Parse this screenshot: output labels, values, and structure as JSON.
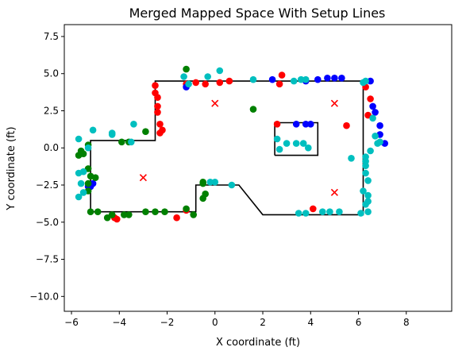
{
  "chart_data": {
    "type": "scatter",
    "title": "Merged Mapped Space With Setup Lines",
    "xlabel": "X coordinate (ft)",
    "ylabel": "Y coordinate (ft)",
    "xlim": [
      -6.3,
      9.9
    ],
    "ylim": [
      -11.0,
      8.3
    ],
    "xticks": [
      -6,
      -4,
      -2,
      0,
      2,
      4,
      6,
      8
    ],
    "xtick_labels": [
      "−6",
      "−4",
      "−2",
      "0",
      "2",
      "4",
      "6",
      "8"
    ],
    "yticks": [
      7.5,
      5.0,
      2.5,
      0.0,
      -2.5,
      -5.0,
      -7.5,
      -10.0
    ],
    "ytick_labels": [
      "7.5",
      "5.0",
      "2.5",
      "0.0",
      "−2.5",
      "−5.0",
      "−7.5",
      "−10.0"
    ],
    "grid": false,
    "colors": {
      "red": "#ff0000",
      "blue": "#0000ff",
      "green": "#008000",
      "cyan": "#00bfbf",
      "line": "#000000"
    },
    "setup_lines": [
      {
        "name": "outline",
        "points": [
          [
            -5.2,
            -4.3
          ],
          [
            -5.2,
            0.5
          ],
          [
            -2.5,
            0.5
          ],
          [
            -2.5,
            4.5
          ],
          [
            6.2,
            4.5
          ],
          [
            6.2,
            -4.5
          ],
          [
            2.0,
            -4.5
          ],
          [
            1.0,
            -2.5
          ],
          [
            -0.8,
            -2.5
          ],
          [
            -0.8,
            -4.3
          ],
          [
            -5.2,
            -4.3
          ]
        ]
      },
      {
        "name": "inner-box",
        "points": [
          [
            2.5,
            -0.5
          ],
          [
            2.5,
            1.7
          ],
          [
            4.3,
            1.7
          ],
          [
            4.3,
            -0.5
          ],
          [
            2.5,
            -0.5
          ]
        ]
      }
    ],
    "markers": [
      [
        0.0,
        3.0
      ],
      [
        5.0,
        3.0
      ],
      [
        -3.0,
        -2.0
      ],
      [
        5.0,
        -3.0
      ]
    ],
    "series": [
      {
        "color": "red",
        "points": [
          [
            -2.5,
            4.2
          ],
          [
            -2.5,
            3.7
          ],
          [
            -2.4,
            3.4
          ],
          [
            -2.4,
            2.8
          ],
          [
            -2.4,
            2.4
          ],
          [
            -2.3,
            1.6
          ],
          [
            -2.3,
            1.0
          ],
          [
            -2.2,
            1.2
          ],
          [
            -1.2,
            4.3
          ],
          [
            -0.8,
            4.4
          ],
          [
            -0.4,
            4.3
          ],
          [
            0.2,
            4.4
          ],
          [
            0.6,
            4.5
          ],
          [
            2.8,
            4.9
          ],
          [
            2.7,
            4.3
          ],
          [
            2.6,
            1.6
          ],
          [
            4.1,
            -4.1
          ],
          [
            5.5,
            1.5
          ],
          [
            6.4,
            2.2
          ],
          [
            6.5,
            3.3
          ],
          [
            6.3,
            4.1
          ],
          [
            -4.1,
            -4.8
          ],
          [
            -4.2,
            -4.7
          ],
          [
            -1.6,
            -4.7
          ],
          [
            -1.2,
            -4.2
          ]
        ]
      },
      {
        "color": "blue",
        "points": [
          [
            -1.2,
            4.1
          ],
          [
            2.4,
            4.6
          ],
          [
            3.4,
            1.6
          ],
          [
            3.8,
            1.6
          ],
          [
            4.0,
            1.6
          ],
          [
            4.3,
            4.6
          ],
          [
            4.7,
            4.7
          ],
          [
            5.0,
            4.7
          ],
          [
            5.3,
            4.7
          ],
          [
            6.5,
            4.5
          ],
          [
            6.6,
            2.8
          ],
          [
            6.7,
            2.4
          ],
          [
            6.9,
            1.5
          ],
          [
            6.9,
            0.9
          ],
          [
            7.1,
            0.3
          ],
          [
            -5.1,
            -2.4
          ],
          [
            -5.3,
            -2.6
          ],
          [
            -5.2,
            -2.6
          ],
          [
            3.8,
            4.5
          ]
        ]
      },
      {
        "color": "green",
        "points": [
          [
            -5.3,
            0.2
          ],
          [
            -5.6,
            -0.2
          ],
          [
            -5.5,
            -0.4
          ],
          [
            -5.7,
            -0.5
          ],
          [
            -5.3,
            -1.4
          ],
          [
            -5.2,
            -1.9
          ],
          [
            -5.0,
            -2.0
          ],
          [
            -5.3,
            -2.4
          ],
          [
            -5.3,
            -2.9
          ],
          [
            -5.2,
            -4.3
          ],
          [
            -4.9,
            -4.3
          ],
          [
            -4.5,
            -4.7
          ],
          [
            -4.3,
            -4.5
          ],
          [
            -3.6,
            -4.5
          ],
          [
            -3.8,
            -4.5
          ],
          [
            -2.9,
            -4.3
          ],
          [
            -2.5,
            -4.3
          ],
          [
            -2.1,
            -4.3
          ],
          [
            -1.2,
            -4.1
          ],
          [
            -0.9,
            -4.5
          ],
          [
            -0.5,
            -2.4
          ],
          [
            -0.5,
            -2.3
          ],
          [
            -0.4,
            -3.1
          ],
          [
            -0.5,
            -3.4
          ],
          [
            1.6,
            2.6
          ],
          [
            -1.2,
            5.3
          ],
          [
            -2.9,
            1.1
          ],
          [
            -3.6,
            0.4
          ],
          [
            -3.9,
            0.4
          ]
        ]
      },
      {
        "color": "cyan",
        "points": [
          [
            -1.3,
            4.8
          ],
          [
            -1.1,
            4.3
          ],
          [
            -0.3,
            4.8
          ],
          [
            0.2,
            5.2
          ],
          [
            1.6,
            4.6
          ],
          [
            3.3,
            4.5
          ],
          [
            3.6,
            4.6
          ],
          [
            3.8,
            4.6
          ],
          [
            6.3,
            4.5
          ],
          [
            6.2,
            4.4
          ],
          [
            6.6,
            2.0
          ],
          [
            6.7,
            0.8
          ],
          [
            6.8,
            0.3
          ],
          [
            6.9,
            0.4
          ],
          [
            6.5,
            -0.2
          ],
          [
            6.3,
            -0.6
          ],
          [
            6.3,
            -0.9
          ],
          [
            5.7,
            -0.7
          ],
          [
            6.3,
            -1.2
          ],
          [
            6.3,
            -1.7
          ],
          [
            6.4,
            -2.2
          ],
          [
            6.2,
            -2.9
          ],
          [
            6.4,
            -3.2
          ],
          [
            6.4,
            -3.6
          ],
          [
            6.3,
            -3.8
          ],
          [
            6.4,
            -4.3
          ],
          [
            6.1,
            -4.4
          ],
          [
            5.2,
            -4.3
          ],
          [
            4.8,
            -4.3
          ],
          [
            4.5,
            -4.3
          ],
          [
            3.8,
            -4.4
          ],
          [
            3.5,
            -4.4
          ],
          [
            2.6,
            0.6
          ],
          [
            2.7,
            -0.1
          ],
          [
            3.0,
            0.3
          ],
          [
            3.4,
            0.3
          ],
          [
            3.7,
            0.3
          ],
          [
            3.9,
            0.0
          ],
          [
            -5.3,
            0.0
          ],
          [
            -5.5,
            -1.6
          ],
          [
            -5.7,
            -1.7
          ],
          [
            -5.6,
            -2.4
          ],
          [
            -5.7,
            -3.3
          ],
          [
            -5.5,
            -3.0
          ],
          [
            -4.3,
            1.0
          ],
          [
            -4.3,
            0.9
          ],
          [
            -3.5,
            0.4
          ],
          [
            -3.4,
            1.6
          ],
          [
            0.0,
            -2.3
          ],
          [
            0.7,
            -2.5
          ],
          [
            -0.2,
            -2.3
          ],
          [
            -5.7,
            0.6
          ],
          [
            -5.1,
            1.2
          ]
        ]
      }
    ]
  }
}
